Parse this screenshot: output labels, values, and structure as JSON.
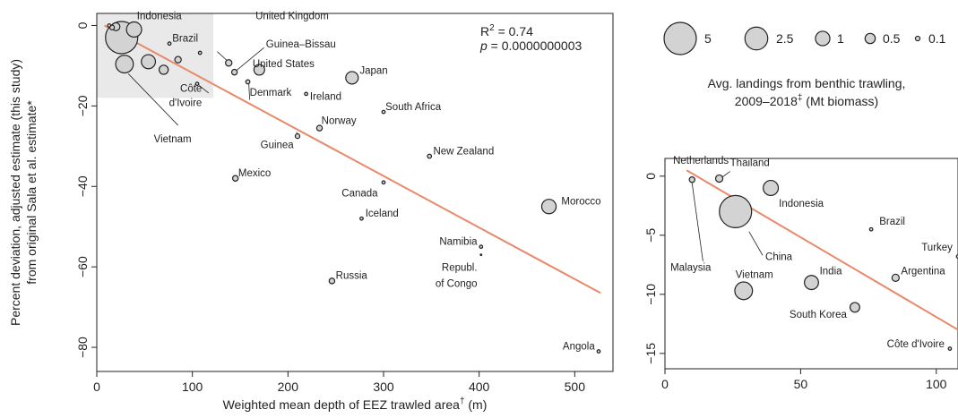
{
  "chart_data": [
    {
      "type": "scatter",
      "xlabel": "Weighted mean depth of EEZ trawled area",
      "xlabel_sup": "†",
      "xlabel_unit": " (m)",
      "ylabel_line1": "Percent deviation, adjusted estimate (this study)",
      "ylabel_line2": "from original Sala et al. estimate*",
      "xlim": [
        0,
        540
      ],
      "ylim": [
        -86,
        3
      ],
      "x_ticks": [
        0,
        100,
        200,
        300,
        400,
        500
      ],
      "y_ticks": [
        0,
        -20,
        -40,
        -60,
        -80
      ],
      "stats": {
        "r2_label": "R",
        "r2_sup": "2",
        "r2_value": " = 0.74",
        "p_label": "p",
        "p_value": " = 0.0000000003"
      },
      "fit_line": {
        "x": [
          8,
          527
        ],
        "y": [
          0,
          -66.5
        ],
        "color": "#e8896a"
      },
      "inset_box": {
        "x": [
          0,
          122
        ],
        "y": [
          -18,
          3
        ]
      },
      "points": [
        {
          "x": 13,
          "y": 0,
          "size": 0.05
        },
        {
          "x": 16,
          "y": -0.5,
          "size": 0.1
        },
        {
          "x": 20,
          "y": -0.3,
          "size": 0.3
        },
        {
          "x": 26,
          "y": -3,
          "size": 5
        },
        {
          "x": 39,
          "y": -1,
          "size": 1.1
        },
        {
          "x": 54,
          "y": -9,
          "size": 0.95
        },
        {
          "x": 29,
          "y": -9.6,
          "size": 1.5
        },
        {
          "x": 70,
          "y": -11,
          "size": 0.4
        },
        {
          "x": 76,
          "y": -4.5,
          "size": 0.05
        },
        {
          "x": 85,
          "y": -8.5,
          "size": 0.2
        },
        {
          "x": 105,
          "y": -14.5,
          "size": 0.05
        },
        {
          "x": 108,
          "y": -6.8,
          "size": 0.05
        },
        {
          "x": 138,
          "y": -9.3,
          "size": 0.2
        },
        {
          "x": 144,
          "y": -11.6,
          "size": 0.15
        },
        {
          "x": 158,
          "y": -14,
          "size": 0.08
        },
        {
          "x": 170,
          "y": -11,
          "size": 0.55
        },
        {
          "x": 219,
          "y": -17,
          "size": 0.05
        },
        {
          "x": 267,
          "y": -13,
          "size": 0.75
        },
        {
          "x": 300,
          "y": -21.5,
          "size": 0.05
        },
        {
          "x": 233,
          "y": -25.5,
          "size": 0.15
        },
        {
          "x": 210,
          "y": -27.5,
          "size": 0.1
        },
        {
          "x": 348,
          "y": -32.5,
          "size": 0.08
        },
        {
          "x": 145,
          "y": -38,
          "size": 0.15
        },
        {
          "x": 300,
          "y": -39,
          "size": 0.05
        },
        {
          "x": 473,
          "y": -45,
          "size": 1
        },
        {
          "x": 277,
          "y": -48,
          "size": 0.05
        },
        {
          "x": 402,
          "y": -55,
          "size": 0.05
        },
        {
          "x": 402,
          "y": -57,
          "size": 0.03
        },
        {
          "x": 246,
          "y": -63.5,
          "size": 0.15
        },
        {
          "x": 525,
          "y": -81,
          "size": 0.05
        }
      ],
      "labels": [
        {
          "text": "Indonesia",
          "x": 42,
          "y": 1.5,
          "anchor": "start"
        },
        {
          "text": "Brazil",
          "x": 79,
          "y": -4,
          "anchor": "start"
        },
        {
          "text": "Côte",
          "x": 110,
          "y": -16.5,
          "anchor": "end"
        },
        {
          "text": "d'Ivoire",
          "x": 110,
          "y": -20,
          "anchor": "end"
        },
        {
          "text": "Vietnam",
          "x": 99,
          "y": -29,
          "anchor": "end"
        },
        {
          "text": "United Kingdom",
          "x": 166,
          "y": 1.5,
          "anchor": "start"
        },
        {
          "text": "Guinea–Bissau",
          "x": 177,
          "y": -5.5,
          "anchor": "start"
        },
        {
          "text": "United States",
          "x": 163,
          "y": -10.4,
          "anchor": "start"
        },
        {
          "text": "Denmark",
          "x": 160,
          "y": -17.5,
          "anchor": "start"
        },
        {
          "text": "Ireland",
          "x": 223,
          "y": -18.5,
          "anchor": "start"
        },
        {
          "text": "Japan",
          "x": 275,
          "y": -12,
          "anchor": "start"
        },
        {
          "text": "South Africa",
          "x": 302,
          "y": -21,
          "anchor": "start"
        },
        {
          "text": "Norway",
          "x": 235,
          "y": -24.5,
          "anchor": "start"
        },
        {
          "text": "Guinea",
          "x": 206,
          "y": -30.5,
          "anchor": "end"
        },
        {
          "text": "New Zealand",
          "x": 352,
          "y": -32,
          "anchor": "start"
        },
        {
          "text": "Mexico",
          "x": 148,
          "y": -37.5,
          "anchor": "start"
        },
        {
          "text": "Canada",
          "x": 294,
          "y": -42.5,
          "anchor": "end"
        },
        {
          "text": "Morocco",
          "x": 486,
          "y": -44.5,
          "anchor": "start"
        },
        {
          "text": "Iceland",
          "x": 281,
          "y": -47.5,
          "anchor": "start"
        },
        {
          "text": "Namibia",
          "x": 398,
          "y": -54.5,
          "anchor": "end"
        },
        {
          "text": "Republ.",
          "x": 398,
          "y": -61,
          "anchor": "end"
        },
        {
          "text": "of Congo",
          "x": 398,
          "y": -65,
          "anchor": "end"
        },
        {
          "text": "Russia",
          "x": 250,
          "y": -63,
          "anchor": "start"
        },
        {
          "text": "Angola",
          "x": 521,
          "y": -80.5,
          "anchor": "end"
        }
      ],
      "leaders": [
        {
          "x1": 126,
          "y1": -6.5,
          "x2": 139,
          "y2": -9.3
        },
        {
          "x1": 175,
          "y1": -5.5,
          "x2": 144,
          "y2": -11.6
        },
        {
          "x1": 160,
          "y1": -18.5,
          "x2": 159,
          "y2": -14.5
        },
        {
          "x1": 85,
          "y1": -24.8,
          "x2": 33,
          "y2": -12
        },
        {
          "x1": 117,
          "y1": -16.8,
          "x2": 107,
          "y2": -14.9
        },
        {
          "x1": 209,
          "y1": -26.5,
          "x2": 210,
          "y2": -27.5
        }
      ]
    },
    {
      "type": "scatter",
      "xlim": [
        0,
        108
      ],
      "ylim": [
        -16.3,
        1.5
      ],
      "x_ticks": [
        0,
        50,
        100
      ],
      "y_ticks": [
        0,
        -5,
        -10,
        -15
      ],
      "fit_line": {
        "x": [
          8,
          108
        ],
        "y": [
          0.5,
          -13
        ],
        "color": "#e8896a"
      },
      "points": [
        {
          "x": 10,
          "y": -0.3,
          "size": 0.15
        },
        {
          "x": 20,
          "y": -0.2,
          "size": 0.25
        },
        {
          "x": 39,
          "y": -1,
          "size": 1.1
        },
        {
          "x": 26,
          "y": -3,
          "size": 5
        },
        {
          "x": 76,
          "y": -4.5,
          "size": 0.05
        },
        {
          "x": 108,
          "y": -6.8,
          "size": 0.05
        },
        {
          "x": 85,
          "y": -8.6,
          "size": 0.25
        },
        {
          "x": 54,
          "y": -9,
          "size": 0.95
        },
        {
          "x": 29,
          "y": -9.7,
          "size": 1.5
        },
        {
          "x": 70,
          "y": -11.1,
          "size": 0.45
        },
        {
          "x": 105,
          "y": -14.6,
          "size": 0.05
        }
      ],
      "labels": [
        {
          "text": "Netherlands",
          "x": 3,
          "y": 1.05,
          "anchor": "start"
        },
        {
          "text": "Thailand",
          "x": 24,
          "y": 0.85,
          "anchor": "start"
        },
        {
          "text": "Indonesia",
          "x": 42,
          "y": -2.6,
          "anchor": "start"
        },
        {
          "text": "Brazil",
          "x": 79,
          "y": -4.1,
          "anchor": "start"
        },
        {
          "text": "China",
          "x": 37,
          "y": -7.1,
          "anchor": "start"
        },
        {
          "text": "Malaysia",
          "x": 17,
          "y": -8,
          "anchor": "end"
        },
        {
          "text": "Turkey",
          "x": 106,
          "y": -6.3,
          "anchor": "end"
        },
        {
          "text": "Argentina",
          "x": 87,
          "y": -8.3,
          "anchor": "start"
        },
        {
          "text": "Vietnam",
          "x": 26,
          "y": -8.6,
          "anchor": "start"
        },
        {
          "text": "India",
          "x": 57,
          "y": -8.3,
          "anchor": "start"
        },
        {
          "text": "South Korea",
          "x": 67,
          "y": -12,
          "anchor": "end"
        },
        {
          "text": "Côte d'Ivoire",
          "x": 103,
          "y": -14.5,
          "anchor": "end"
        }
      ],
      "leaders": [
        {
          "x1": 10,
          "y1": -0.6,
          "x2": 14,
          "y2": -7.2
        },
        {
          "x1": 21,
          "y1": -0.1,
          "x2": 24,
          "y2": 0.4
        },
        {
          "x1": 31,
          "y1": -4.7,
          "x2": 36,
          "y2": -6.7
        }
      ]
    }
  ],
  "legend": {
    "title_line1": "Avg. landings from benthic trawling,",
    "title_line2_a": "2009–2018",
    "title_line2_sup": "‡",
    "title_line2_b": " (Mt biomass)",
    "entries": [
      {
        "label": "5",
        "size": 5
      },
      {
        "label": "2.5",
        "size": 2.5
      },
      {
        "label": "1",
        "size": 1
      },
      {
        "label": "0.5",
        "size": 0.5
      },
      {
        "label": "0.1",
        "size": 0.1
      }
    ]
  },
  "colors": {
    "bubble_fill": "#d3d3d3",
    "bubble_stroke": "#222222",
    "fit": "#e8896a",
    "inset_fill": "#e9e9e9"
  }
}
